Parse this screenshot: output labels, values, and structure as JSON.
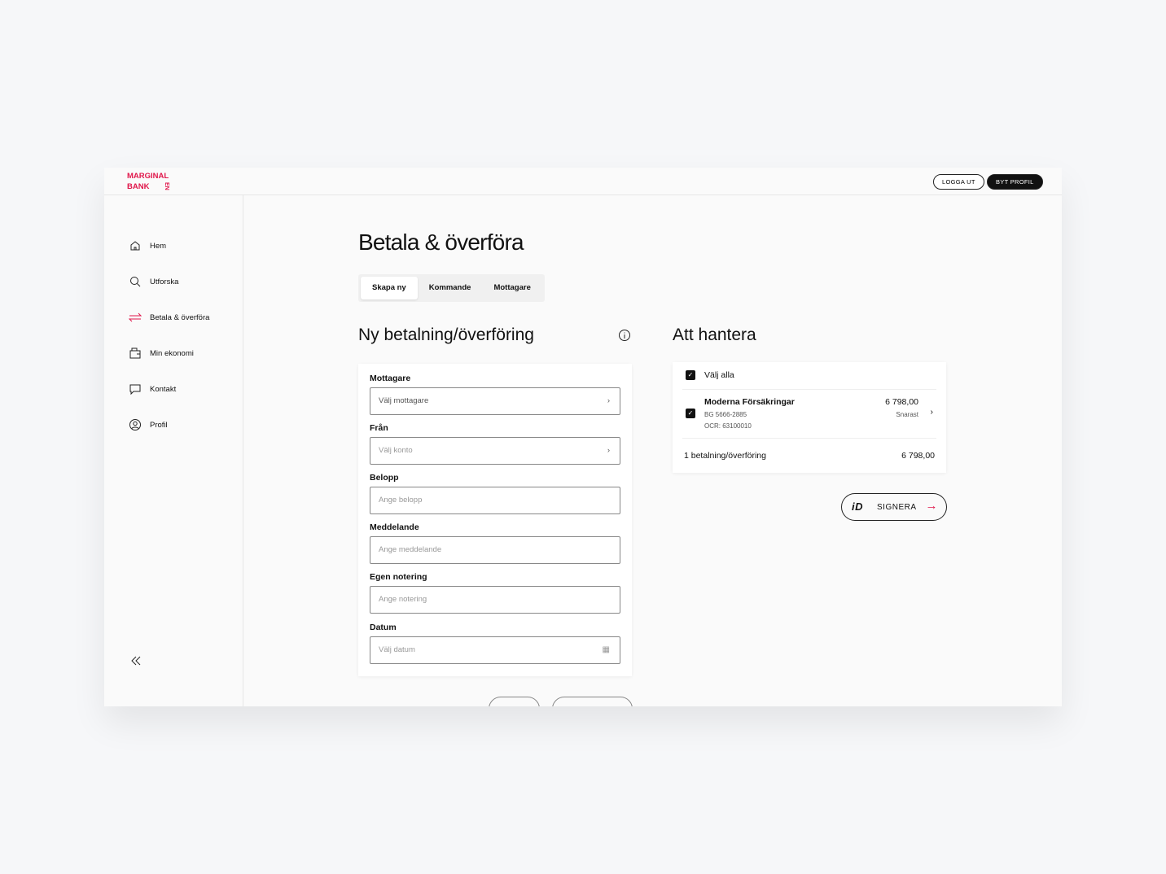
{
  "brand": {
    "line1": "MARGINAL",
    "line2": "BANK",
    "vertical": "EN",
    "color": "#e0164a"
  },
  "header": {
    "logout": "LOGGA UT",
    "switch_profile": "BYT PROFIL"
  },
  "sidebar": {
    "items": [
      {
        "label": "Hem",
        "icon": "home-icon"
      },
      {
        "label": "Utforska",
        "icon": "search-icon"
      },
      {
        "label": "Betala & överföra",
        "icon": "transfer-icon",
        "active": true
      },
      {
        "label": "Min ekonomi",
        "icon": "wallet-icon"
      },
      {
        "label": "Kontakt",
        "icon": "chat-icon"
      },
      {
        "label": "Profil",
        "icon": "user-icon"
      }
    ],
    "collapse_icon": "chevrons-left-icon"
  },
  "page": {
    "title": "Betala & överföra",
    "tabs": [
      {
        "label": "Skapa ny",
        "active": true
      },
      {
        "label": "Kommande"
      },
      {
        "label": "Mottagare"
      }
    ]
  },
  "form": {
    "title": "Ny betalning/överföring",
    "fields": [
      {
        "label": "Mottagare",
        "placeholder": "Välj mottagare"
      },
      {
        "label": "Från",
        "placeholder": "Välj konto"
      },
      {
        "label": "Belopp",
        "placeholder": "Ange belopp"
      },
      {
        "label": "Meddelande",
        "placeholder": "Ange meddelande"
      },
      {
        "label": "Egen notering",
        "placeholder": "Ange notering"
      },
      {
        "label": "Datum",
        "placeholder": "Välj datum"
      }
    ]
  },
  "pending": {
    "title": "Att hantera",
    "select_all": "Välj alla",
    "item": {
      "name": "Moderna Försäkringar",
      "bg": "BG 5666-2885",
      "ocr": "OCR: 63100010",
      "amount": "6 798,00",
      "when": "Snarast"
    },
    "summary_label": "1 betalning/överföring",
    "summary_amount": "6 798,00",
    "sign": "SIGNERA"
  }
}
